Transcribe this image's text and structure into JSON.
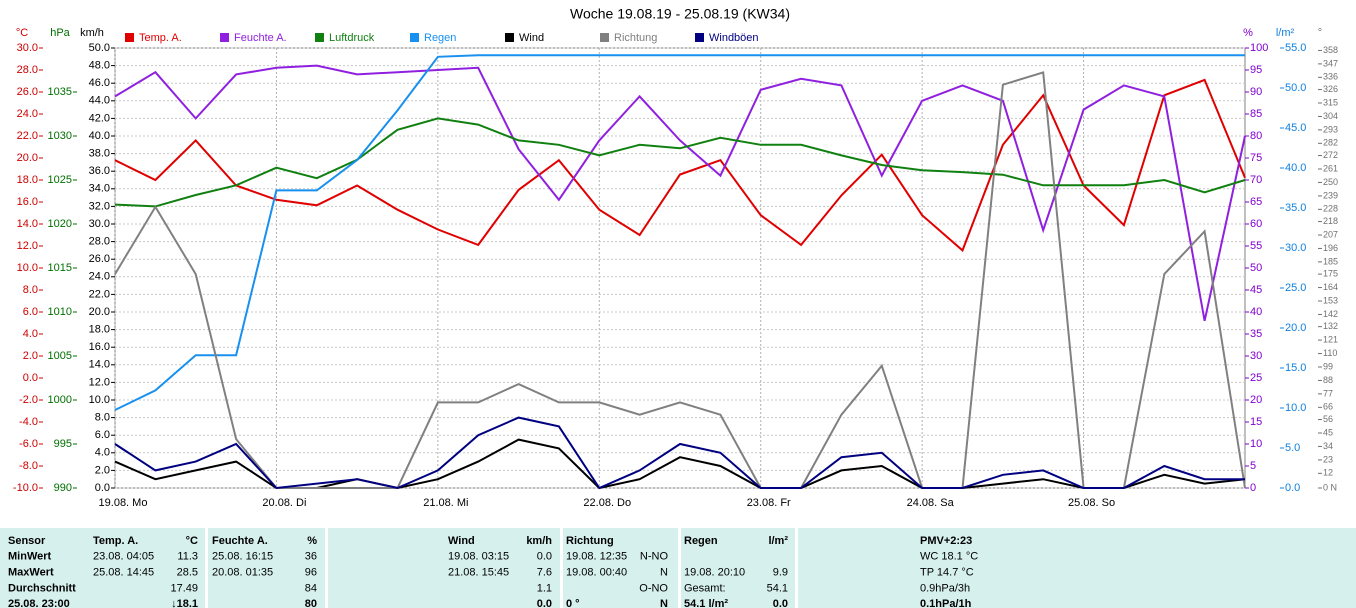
{
  "chart_data": {
    "type": "line",
    "title": "Woche 19.08.19 - 25.08.19 (KW34)",
    "grid": true,
    "xlim": [
      0,
      168
    ],
    "xticks": [
      {
        "value": 0,
        "label": "19.08. Mo"
      },
      {
        "value": 24,
        "label": "20.08. Di"
      },
      {
        "value": 48,
        "label": "21.08. Mi"
      },
      {
        "value": 72,
        "label": "22.08. Do"
      },
      {
        "value": 96,
        "label": "23.08. Fr"
      },
      {
        "value": 120,
        "label": "24.08. Sa"
      },
      {
        "value": 144,
        "label": "25.08. So"
      }
    ],
    "x": [
      0,
      6,
      12,
      18,
      24,
      30,
      36,
      42,
      48,
      54,
      60,
      66,
      72,
      78,
      84,
      90,
      96,
      102,
      108,
      114,
      120,
      126,
      132,
      138,
      144,
      150,
      156,
      162,
      168
    ],
    "axes": [
      {
        "label": "°C",
        "color": "#d00000",
        "lim": [
          -10,
          30
        ],
        "ticks": [
          {
            "value": -10,
            "label": "-10.0"
          },
          {
            "value": -8,
            "label": "-8.0"
          },
          {
            "value": -6,
            "label": "-6.0"
          },
          {
            "value": -4,
            "label": "-4.0"
          },
          {
            "value": -2,
            "label": "-2.0"
          },
          {
            "value": 0,
            "label": "0.0"
          },
          {
            "value": 2,
            "label": "2.0"
          },
          {
            "value": 4,
            "label": "4.0"
          },
          {
            "value": 6,
            "label": "6.0"
          },
          {
            "value": 8,
            "label": "8.0"
          },
          {
            "value": 10,
            "label": "10.0"
          },
          {
            "value": 12,
            "label": "12.0"
          },
          {
            "value": 14,
            "label": "14.0"
          },
          {
            "value": 16,
            "label": "16.0"
          },
          {
            "value": 18,
            "label": "18.0"
          },
          {
            "value": 20,
            "label": "20.0"
          },
          {
            "value": 22,
            "label": "22.0"
          },
          {
            "value": 24,
            "label": "24.0"
          },
          {
            "value": 26,
            "label": "26.0"
          },
          {
            "value": 28,
            "label": "28.0"
          },
          {
            "value": 30,
            "label": "30.0"
          }
        ]
      },
      {
        "label": "hPa",
        "color": "#007000",
        "lim": [
          990,
          1040
        ],
        "ticks": [
          990,
          995,
          1000,
          1005,
          1010,
          1015,
          1020,
          1025,
          1030,
          1035
        ]
      },
      {
        "label": "km/h",
        "color": "#000000",
        "lim": [
          0,
          50
        ],
        "ticks": [
          {
            "value": 0,
            "label": "0.0"
          },
          {
            "value": 2,
            "label": "2.0"
          },
          {
            "value": 4,
            "label": "4.0"
          },
          {
            "value": 6,
            "label": "6.0"
          },
          {
            "value": 8,
            "label": "8.0"
          },
          {
            "value": 10,
            "label": "10.0"
          },
          {
            "value": 12,
            "label": "12.0"
          },
          {
            "value": 14,
            "label": "14.0"
          },
          {
            "value": 16,
            "label": "16.0"
          },
          {
            "value": 18,
            "label": "18.0"
          },
          {
            "value": 20,
            "label": "20.0"
          },
          {
            "value": 22,
            "label": "22.0"
          },
          {
            "value": 24,
            "label": "24.0"
          },
          {
            "value": 26,
            "label": "26.0"
          },
          {
            "value": 28,
            "label": "28.0"
          },
          {
            "value": 30,
            "label": "30.0"
          },
          {
            "value": 32,
            "label": "32.0"
          },
          {
            "value": 34,
            "label": "34.0"
          },
          {
            "value": 36,
            "label": "36.0"
          },
          {
            "value": 38,
            "label": "38.0"
          },
          {
            "value": 40,
            "label": "40.0"
          },
          {
            "value": 42,
            "label": "42.0"
          },
          {
            "value": 44,
            "label": "44.0"
          },
          {
            "value": 46,
            "label": "46.0"
          },
          {
            "value": 48,
            "label": "48.0"
          },
          {
            "value": 50,
            "label": "50.0"
          }
        ]
      },
      {
        "label": "%",
        "color": "#8000d0",
        "lim": [
          0,
          100
        ],
        "ticks": [
          0,
          5,
          10,
          15,
          20,
          25,
          30,
          35,
          40,
          45,
          50,
          55,
          60,
          65,
          70,
          75,
          80,
          85,
          90,
          95,
          100
        ]
      },
      {
        "label": "l/m²",
        "color": "#1080e0",
        "lim": [
          0,
          55
        ],
        "ticks": [
          {
            "value": 0,
            "label": "0.0"
          },
          {
            "value": 5,
            "label": "5.0"
          },
          {
            "value": 10,
            "label": "10.0"
          },
          {
            "value": 15,
            "label": "15.0"
          },
          {
            "value": 20,
            "label": "20.0"
          },
          {
            "value": 25,
            "label": "25.0"
          },
          {
            "value": 30,
            "label": "30.0"
          },
          {
            "value": 35,
            "label": "35.0"
          },
          {
            "value": 40,
            "label": "40.0"
          },
          {
            "value": 45,
            "label": "45.0"
          },
          {
            "value": 50,
            "label": "50.0"
          },
          {
            "value": 55,
            "label": "55.0"
          }
        ]
      },
      {
        "label": "°",
        "color": "#707070",
        "lim": [
          0,
          360
        ],
        "ticks": [
          {
            "value": 0,
            "label": "0 N"
          },
          12,
          23,
          34,
          45,
          56,
          66,
          77,
          88,
          99,
          110,
          121,
          132,
          142,
          153,
          164,
          175,
          185,
          196,
          207,
          218,
          228,
          239,
          250,
          261,
          272,
          282,
          293,
          304,
          315,
          326,
          336,
          347,
          358
        ]
      }
    ],
    "series": [
      {
        "name": "Temp. A.",
        "color": "#e00000",
        "axis": 0,
        "values": [
          19.8,
          18,
          21.6,
          17.5,
          16.2,
          15.7,
          17.5,
          15.3,
          13.5,
          12.1,
          17.1,
          19.8,
          15.3,
          13,
          18.5,
          19.8,
          14.8,
          12.1,
          16.6,
          20.3,
          14.8,
          11.6,
          21.2,
          25.7,
          17.5,
          13.9,
          25.7,
          27.1,
          18.2
        ]
      },
      {
        "name": "Feuchte A.",
        "color": "#9020e0",
        "axis": 3,
        "values": [
          89,
          94.5,
          84,
          94,
          95.5,
          96,
          94,
          94.5,
          95,
          95.5,
          77,
          65.5,
          79,
          89,
          79,
          71,
          90.5,
          93,
          91.5,
          71,
          88,
          91.5,
          88,
          58.6,
          86,
          91.5,
          89,
          38,
          80
        ]
      },
      {
        "name": "Luftdruck",
        "color": "#108010",
        "axis": 1,
        "values": [
          1022.2,
          1022,
          1023.3,
          1024.4,
          1026.4,
          1025.2,
          1027.3,
          1030.7,
          1032,
          1031.3,
          1029.5,
          1029,
          1027.8,
          1029,
          1028.6,
          1029.8,
          1029,
          1029,
          1027.8,
          1026.7,
          1026.1,
          1025.9,
          1025.6,
          1024.4,
          1024.4,
          1024.4,
          1025,
          1023.6,
          1025
        ]
      },
      {
        "name": "Regen",
        "color": "#1890f0",
        "axis": 4,
        "values": [
          9.75,
          12.2,
          16.6,
          16.6,
          37.2,
          37.2,
          41,
          47.2,
          53.9,
          54.1,
          54.1,
          54.1,
          54.1,
          54.1,
          54.1,
          54.1,
          54.1,
          54.1,
          54.1,
          54.1,
          54.1,
          54.1,
          54.1,
          54.1,
          54.1,
          54.1,
          54.1,
          54.1,
          54.1
        ]
      },
      {
        "name": "Wind",
        "color": "#000000",
        "axis": 2,
        "values": [
          3,
          1,
          2,
          3,
          0,
          0,
          1,
          0,
          1,
          3,
          5.5,
          4.5,
          0,
          1,
          3.5,
          2.5,
          0,
          0,
          2,
          2.5,
          0,
          0,
          0.5,
          1,
          0,
          0,
          1.5,
          0.5,
          1
        ]
      },
      {
        "name": "Richtung",
        "color": "#808080",
        "axis": 5,
        "values": [
          175,
          230,
          175,
          40,
          0,
          0,
          0,
          0,
          70,
          70,
          85,
          70,
          70,
          60,
          70,
          60,
          0,
          0,
          60,
          100,
          0,
          0,
          330,
          340,
          0,
          0,
          175,
          210,
          0
        ]
      },
      {
        "name": "Windböen",
        "color": "#000080",
        "axis": 2,
        "values": [
          5,
          2,
          3,
          5,
          0,
          0.5,
          1,
          0,
          2,
          6,
          8,
          7,
          0,
          2,
          5,
          4,
          0,
          0,
          3.5,
          4,
          0,
          0,
          1.5,
          2,
          0,
          0,
          2.5,
          1,
          1
        ]
      }
    ]
  },
  "table": {
    "rows": [
      [
        "Sensor",
        "Temp. A.",
        "°C",
        "Feuchte A.",
        "%",
        "Wind",
        "km/h",
        "Richtung",
        null,
        "Regen",
        "l/m²",
        "PMV+2:23"
      ],
      [
        "MinWert",
        "23.08. 04:05",
        "11.3",
        "25.08. 16:15",
        "36",
        "19.08. 03:15",
        "0.0",
        "19.08. 12:35",
        "N-NO",
        null,
        null,
        "WC 18.1 °C"
      ],
      [
        "MaxWert",
        "25.08. 14:45",
        "28.5",
        "20.08. 01:35",
        "96",
        "21.08. 15:45",
        "7.6",
        "19.08. 00:40",
        "N",
        "19.08. 20:10",
        "9.9",
        "TP 14.7 °C"
      ],
      [
        "Durchschnitt",
        null,
        "17.49",
        null,
        "84",
        null,
        "1.1",
        null,
        "O-NO",
        "Gesamt:",
        "54.1",
        "0.9hPa/3h"
      ],
      [
        "25.08. 23:00",
        null,
        "↓18.1",
        null,
        "80",
        null,
        "0.0",
        "0 °",
        "N",
        "54.1 l/m²",
        "0.0",
        "0.1hPa/1h"
      ]
    ]
  }
}
